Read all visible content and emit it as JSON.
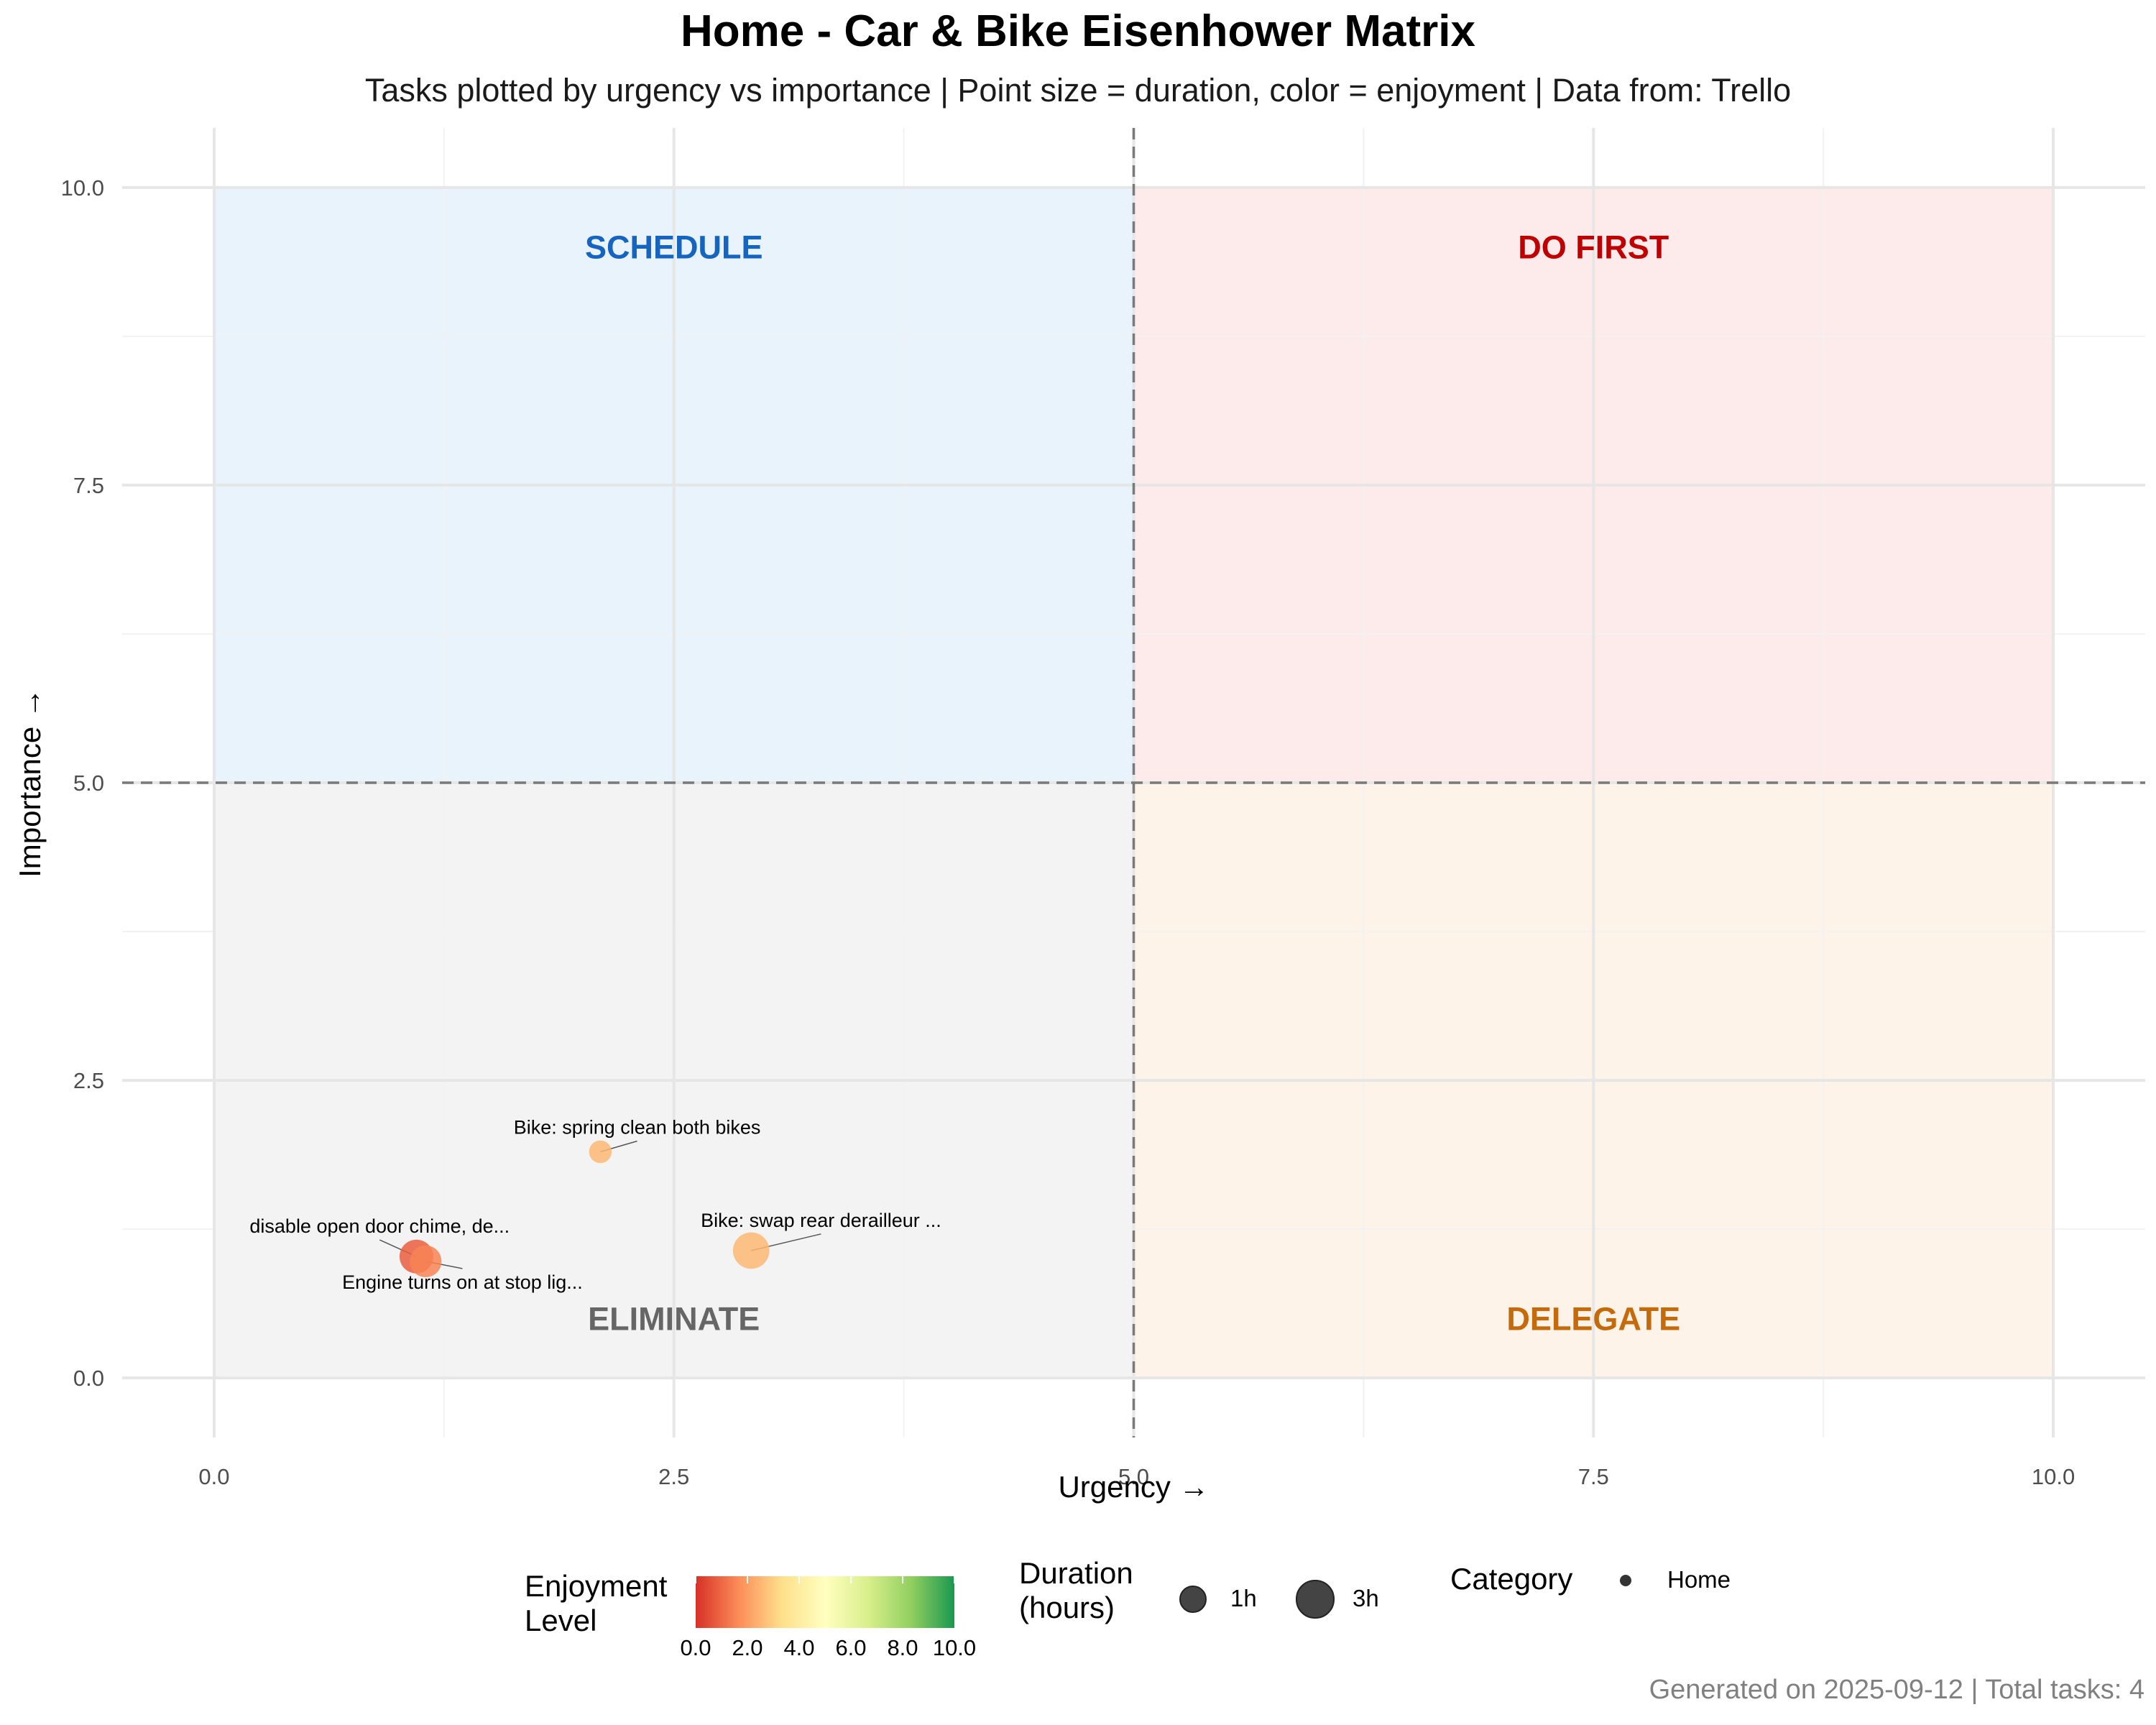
{
  "title": "Home - Car & Bike Eisenhower Matrix",
  "subtitle": "Tasks plotted by urgency vs importance | Point size = duration, color = enjoyment | Data from: Trello",
  "caption": "Generated on 2025-09-12 | Total tasks: 4",
  "chart_data": {
    "type": "scatter",
    "title": "Home - Car & Bike Eisenhower Matrix",
    "xlabel": "Urgency →",
    "ylabel": "Importance →",
    "xlim": [
      -0.5,
      10.5
    ],
    "ylim": [
      -0.5,
      10.5
    ],
    "x_ticks": [
      "0.0",
      "2.5",
      "5.0",
      "7.5",
      "10.0"
    ],
    "y_ticks": [
      "0.0",
      "2.5",
      "5.0",
      "7.5",
      "10.0"
    ],
    "grid": true,
    "thresholds": {
      "x": 5,
      "y": 5
    },
    "quadrants": [
      {
        "label": "SCHEDULE",
        "x_range": [
          0,
          5
        ],
        "y_range": [
          5,
          10
        ],
        "fill": "#e8f3fc",
        "text_color": "#1565c0",
        "label_at": [
          2.5,
          9.5
        ]
      },
      {
        "label": "DO FIRST",
        "x_range": [
          5,
          10
        ],
        "y_range": [
          5,
          10
        ],
        "fill": "#fdeaea",
        "text_color": "#c00000",
        "label_at": [
          7.5,
          9.5
        ]
      },
      {
        "label": "ELIMINATE",
        "x_range": [
          0,
          5
        ],
        "y_range": [
          0,
          5
        ],
        "fill": "#f3f3f3",
        "text_color": "#666666",
        "label_at": [
          2.5,
          0.5
        ]
      },
      {
        "label": "DELEGATE",
        "x_range": [
          5,
          10
        ],
        "y_range": [
          0,
          5
        ],
        "fill": "#fdf3e9",
        "text_color": "#c46a0a",
        "label_at": [
          7.5,
          0.5
        ]
      }
    ],
    "points": [
      {
        "label": "Bike: spring clean both bikes",
        "x": 2.1,
        "y": 1.9,
        "duration": 0.6,
        "enjoyment": 2.5,
        "category": "Home",
        "label_at": [
          2.3,
          2.05
        ]
      },
      {
        "label": "disable open door chime, de...",
        "x": 1.1,
        "y": 1.02,
        "duration": 2.4,
        "enjoyment": 0.8,
        "category": "Home",
        "label_at": [
          0.9,
          1.22
        ]
      },
      {
        "label": "Engine turns on at stop lig...",
        "x": 1.15,
        "y": 0.98,
        "duration": 2.0,
        "enjoyment": 1.5,
        "category": "Home",
        "label_at": [
          1.35,
          0.75
        ]
      },
      {
        "label": "Bike: swap rear derailleur ...",
        "x": 2.92,
        "y": 1.07,
        "duration": 3.0,
        "enjoyment": 2.5,
        "category": "Home",
        "label_at": [
          3.3,
          1.27
        ]
      }
    ],
    "legend_position": "bottom",
    "legends": {
      "color": {
        "title": "Enjoyment Level",
        "ticks": [
          "0.0",
          "2.0",
          "4.0",
          "6.0",
          "8.0",
          "10.0"
        ],
        "range": [
          0,
          10
        ],
        "palette": [
          "#d73027",
          "#fc8d59",
          "#fee08b",
          "#ffffbf",
          "#d9ef8b",
          "#91cf60",
          "#1a9850"
        ]
      },
      "size": {
        "title": "Duration (hours)",
        "entries": [
          {
            "label": "1h",
            "value": 1
          },
          {
            "label": "3h",
            "value": 3
          }
        ]
      },
      "shape": {
        "title": "Category",
        "entries": [
          {
            "label": "Home"
          }
        ]
      }
    }
  },
  "legend": {
    "enjoyment_title_1": "Enjoyment",
    "enjoyment_title_2": "Level",
    "duration_title_1": "Duration",
    "duration_title_2": "(hours)",
    "category_title": "Category"
  }
}
